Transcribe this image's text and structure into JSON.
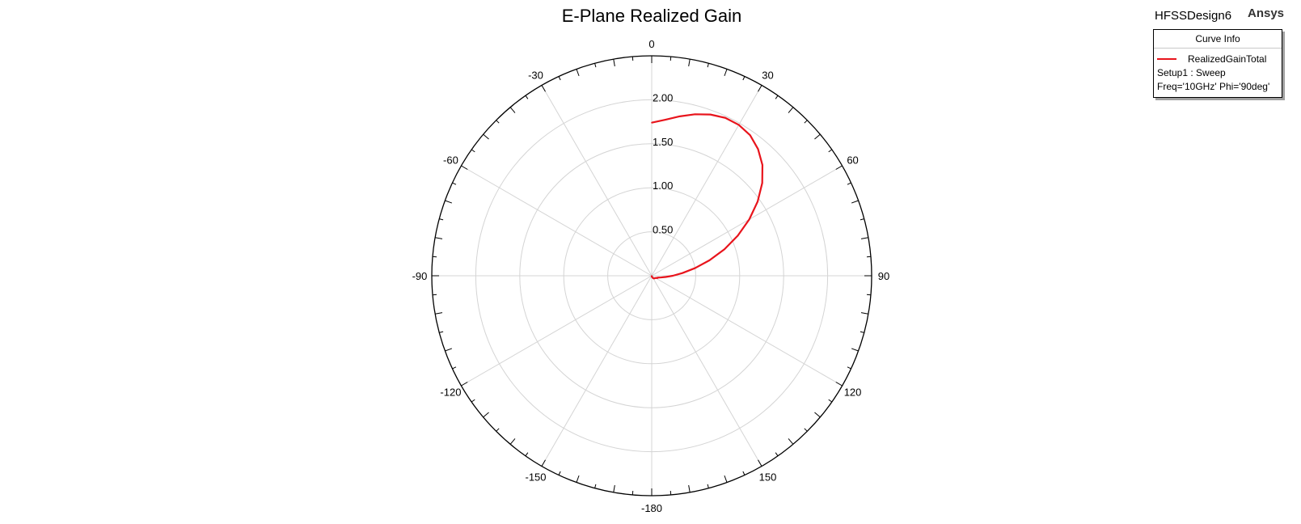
{
  "header": {
    "title": "E-Plane Realized Gain",
    "design_name": "HFSSDesign6",
    "brand": "Ansys"
  },
  "legend": {
    "title": "Curve Info",
    "series_name": "RealizedGainTotal",
    "setup": "Setup1 : Sweep",
    "params": "Freq='10GHz' Phi='90deg'"
  },
  "colors": {
    "series": "#e8141c",
    "grid": "#d4d4d4",
    "axis": "#000000"
  },
  "chart_data": {
    "type": "polar-line",
    "title": "E-Plane Realized Gain",
    "angle_unit": "deg",
    "angle_direction": "clockwise",
    "angle_zero": "top",
    "angle_labels": [
      "0",
      "30",
      "60",
      "90",
      "120",
      "150",
      "-180",
      "-150",
      "-120",
      "-90",
      "-60",
      "-30"
    ],
    "angle_label_values": [
      0,
      30,
      60,
      90,
      120,
      150,
      180,
      210,
      240,
      270,
      300,
      330
    ],
    "radial_ticks": [
      0.5,
      1.0,
      1.5,
      2.0
    ],
    "radial_labels": [
      "0.50",
      "1.00",
      "1.50",
      "2.00"
    ],
    "rlim": [
      0,
      2.5
    ],
    "grid": true,
    "legend_position": "top-right",
    "series": [
      {
        "name": "RealizedGainTotal",
        "theta": [
          0,
          5,
          10,
          15,
          20,
          25,
          30,
          35,
          40,
          45,
          50,
          55,
          60,
          65,
          70,
          75,
          80,
          85,
          90,
          95,
          100,
          105,
          110,
          112,
          115,
          120,
          130,
          140,
          150,
          160,
          170,
          175,
          180
        ],
        "r": [
          1.74,
          1.78,
          1.84,
          1.9,
          1.95,
          1.98,
          1.98,
          1.95,
          1.88,
          1.78,
          1.64,
          1.47,
          1.28,
          1.08,
          0.88,
          0.68,
          0.5,
          0.35,
          0.24,
          0.16,
          0.11,
          0.08,
          0.065,
          0.07,
          0.06,
          0.05,
          0.045,
          0.04,
          0.03,
          0.02,
          0.012,
          0.006,
          0.0
        ]
      }
    ]
  }
}
